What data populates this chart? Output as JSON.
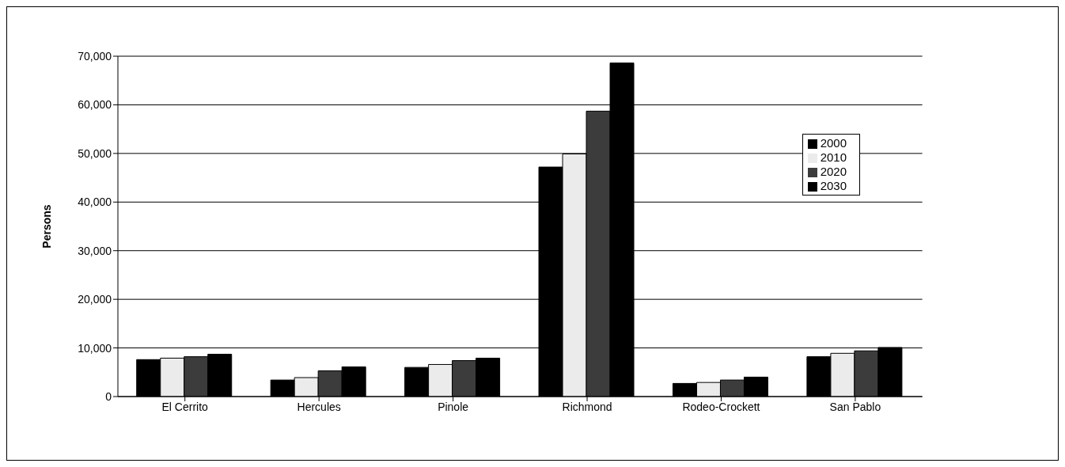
{
  "chart_data": {
    "type": "bar",
    "ylabel": "Persons",
    "categories": [
      "El Cerrito",
      "Hercules",
      "Pinole",
      "Richmond",
      "Rodeo-Crockett",
      "San Pablo"
    ],
    "series": [
      {
        "name": "2000",
        "color": "#000000",
        "values": [
          7600,
          3400,
          6000,
          47200,
          2700,
          8200
        ]
      },
      {
        "name": "2010",
        "color": "#ebebeb",
        "values": [
          7900,
          3900,
          6600,
          49900,
          2900,
          8900
        ]
      },
      {
        "name": "2020",
        "color": "#3c3c3c",
        "values": [
          8200,
          5300,
          7400,
          58700,
          3400,
          9400
        ]
      },
      {
        "name": "2030",
        "color": "#000000",
        "values": [
          8700,
          6100,
          7900,
          68600,
          4000,
          10100
        ]
      }
    ],
    "ylim": [
      0,
      70000
    ],
    "yticks": [
      {
        "value": 0,
        "label": "0"
      },
      {
        "value": 10000,
        "label": "10,000"
      },
      {
        "value": 20000,
        "label": "20,000"
      },
      {
        "value": 30000,
        "label": "30,000"
      },
      {
        "value": 40000,
        "label": "40,000"
      },
      {
        "value": 50000,
        "label": "50,000"
      },
      {
        "value": 60000,
        "label": "60,000"
      },
      {
        "value": 70000,
        "label": "70,000"
      }
    ],
    "grid": "y",
    "legend": "right"
  }
}
